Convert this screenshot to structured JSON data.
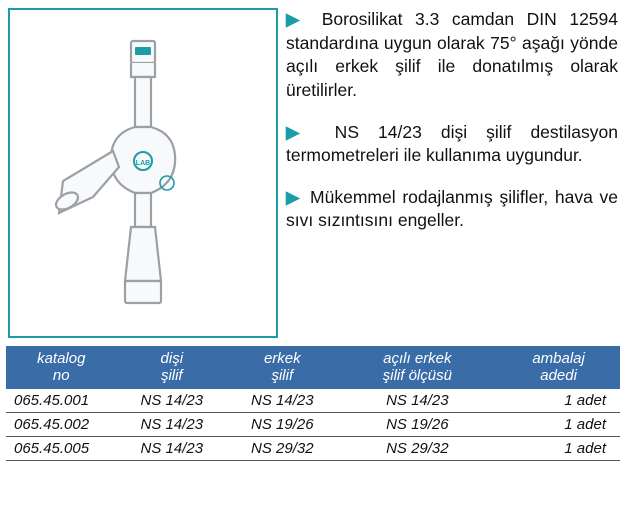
{
  "colors": {
    "accent": "#1a9da6",
    "header_bg": "#3a6ca8",
    "row_divider": "#555555",
    "text": "#111111"
  },
  "description": {
    "paragraphs": [
      "Borosilikat 3.3 camdan DIN 12594 standardına uygun olarak 75° aşağı yönde açılı erkek şilif ile donatılmış olarak üretilirler.",
      "NS 14/23 dişi şilif destilasyon termometreleri ile kullanıma uygundur.",
      "Mükemmel rodajlanmış şilifler,  hava ve sıvı sızıntısını engeller."
    ]
  },
  "table": {
    "columns": [
      {
        "line1": "katalog",
        "line2": "no",
        "width": "18%"
      },
      {
        "line1": "dişi",
        "line2": "şilif",
        "width": "18%"
      },
      {
        "line1": "erkek",
        "line2": "şilif",
        "width": "18%"
      },
      {
        "line1": "açılı erkek",
        "line2": "şilif ölçüsü",
        "width": "26%"
      },
      {
        "line1": "ambalaj",
        "line2": "adedi",
        "width": "20%"
      }
    ],
    "rows": [
      [
        "065.45.001",
        "NS 14/23",
        "NS 14/23",
        "NS 14/23",
        "1 adet"
      ],
      [
        "065.45.002",
        "NS 14/23",
        "NS 19/26",
        "NS 19/26",
        "1 adet"
      ],
      [
        "065.45.005",
        "NS 14/23",
        "NS 29/32",
        "NS 29/32",
        "1 adet"
      ]
    ]
  }
}
